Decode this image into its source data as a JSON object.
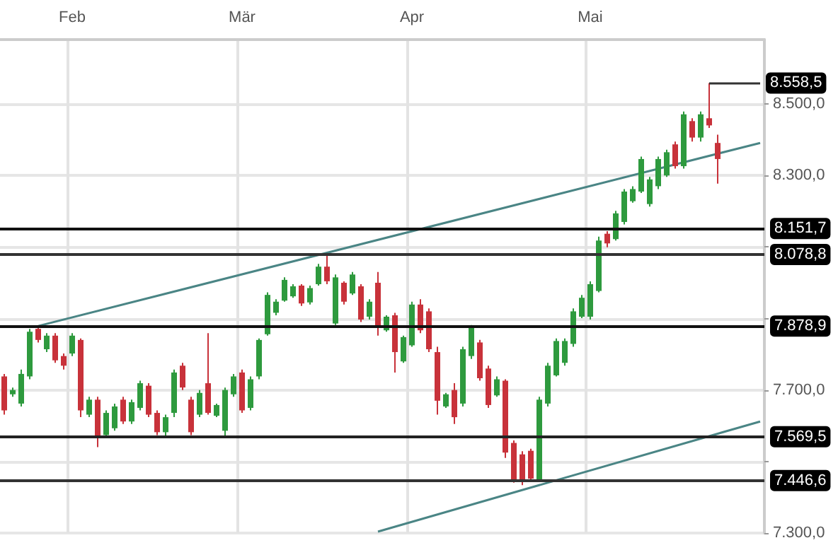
{
  "chart_data": {
    "type": "candlestick",
    "categories": [
      null,
      null,
      null,
      null,
      null,
      null,
      null,
      null,
      "Feb",
      null,
      null,
      null,
      null,
      null,
      null,
      null,
      null,
      null,
      null,
      null,
      null,
      null,
      null,
      null,
      null,
      null,
      null,
      null,
      "Mär",
      null,
      null,
      null,
      null,
      null,
      null,
      null,
      null,
      null,
      null,
      null,
      null,
      null,
      null,
      null,
      null,
      null,
      null,
      null,
      "Apr",
      null,
      null,
      null,
      null,
      null,
      null,
      null,
      null,
      null,
      null,
      null,
      null,
      null,
      null,
      null,
      null,
      null,
      null,
      null,
      null,
      "Mai",
      null,
      null,
      null,
      null,
      null,
      null,
      null,
      null,
      null,
      null,
      null,
      null,
      null,
      null,
      null,
      null,
      null,
      null,
      null,
      null
    ],
    "ohlc": [
      [
        7738,
        7745,
        7631,
        7643
      ],
      [
        7688,
        7707,
        7681,
        7700
      ],
      [
        7662,
        7757,
        7654,
        7745
      ],
      [
        7738,
        7871,
        7730,
        7863
      ],
      [
        7871,
        7878.9,
        7833,
        7840
      ],
      [
        7814,
        7859,
        7806,
        7852
      ],
      [
        7852,
        7859,
        7776,
        7783
      ],
      [
        7795,
        7802,
        7757,
        7768
      ],
      [
        7802,
        7859,
        7795,
        7852
      ],
      [
        7840,
        7844,
        7624,
        7643
      ],
      [
        7631,
        7681,
        7624,
        7673
      ],
      [
        7673,
        7681,
        7540,
        7567
      ],
      [
        7574,
        7643,
        7567,
        7636
      ],
      [
        7593,
        7662,
        7586,
        7654
      ],
      [
        7673,
        7681,
        7605,
        7612
      ],
      [
        7612,
        7673,
        7605,
        7666
      ],
      [
        7650,
        7726,
        7643,
        7719
      ],
      [
        7712,
        7719,
        7624,
        7631
      ],
      [
        7636,
        7643,
        7574,
        7582
      ],
      [
        7582,
        7631,
        7569.5,
        7624
      ],
      [
        7636,
        7757,
        7624,
        7749
      ],
      [
        7768,
        7776,
        7700,
        7707
      ],
      [
        7673,
        7681,
        7574,
        7582
      ],
      [
        7631,
        7700,
        7624,
        7692
      ],
      [
        7719,
        7859,
        7631,
        7636
      ],
      [
        7628,
        7662,
        7624,
        7658
      ],
      [
        7586,
        7707,
        7569.5,
        7700
      ],
      [
        7688,
        7745,
        7681,
        7738
      ],
      [
        7749,
        7757,
        7636,
        7643
      ],
      [
        7650,
        7738,
        7643,
        7730
      ],
      [
        7738,
        7844,
        7730,
        7840
      ],
      [
        7856,
        7973,
        7852,
        7966
      ],
      [
        7916,
        7954,
        7909,
        7947
      ],
      [
        7950,
        8015,
        7947,
        8008
      ],
      [
        7962,
        7996,
        7958,
        7990
      ],
      [
        7992,
        7996,
        7935,
        7942
      ],
      [
        7945,
        7992,
        7939,
        7985
      ],
      [
        7996,
        8053,
        7992,
        8045
      ],
      [
        8045,
        8078.8,
        7996,
        8004
      ],
      [
        7886,
        8023,
        7882,
        8015
      ],
      [
        8000,
        8004,
        7939,
        7947
      ],
      [
        7970,
        8030,
        7966,
        8023
      ],
      [
        7990,
        7996,
        7890,
        7897
      ],
      [
        7905,
        7954,
        7897,
        7947
      ],
      [
        8000,
        8030,
        7852,
        7878
      ],
      [
        7867,
        7909,
        7863,
        7905
      ],
      [
        7909,
        7916,
        7749,
        7806
      ],
      [
        7780,
        7852,
        7776,
        7848
      ],
      [
        7825,
        7947,
        7821,
        7939
      ],
      [
        7939,
        7954,
        7859,
        7867
      ],
      [
        7920,
        7928,
        7806,
        7814
      ],
      [
        7806,
        7821,
        7631,
        7670
      ],
      [
        7654,
        7692,
        7650,
        7688
      ],
      [
        7700,
        7719,
        7605,
        7624
      ],
      [
        7662,
        7821,
        7654,
        7814
      ],
      [
        7795,
        7882,
        7787,
        7875
      ],
      [
        7833,
        7840,
        7726,
        7733
      ],
      [
        7760,
        7768,
        7650,
        7658
      ],
      [
        7685,
        7738,
        7681,
        7730
      ],
      [
        7726,
        7730,
        7510,
        7525
      ],
      [
        7552,
        7559,
        7441,
        7450
      ],
      [
        7520,
        7529,
        7434,
        7446.6
      ],
      [
        7530,
        7536,
        7445,
        7452
      ],
      [
        7450,
        7681,
        7445,
        7673
      ],
      [
        7662,
        7776,
        7654,
        7768
      ],
      [
        7741,
        7844,
        7738,
        7837
      ],
      [
        7776,
        7844,
        7768,
        7837
      ],
      [
        7829,
        7928,
        7821,
        7920
      ],
      [
        7905,
        7966,
        7901,
        7958
      ],
      [
        7905,
        8004,
        7897,
        7996
      ],
      [
        7977,
        8129,
        7973,
        8118
      ],
      [
        8137,
        8144,
        8099,
        8110
      ],
      [
        8122,
        8201,
        8118,
        8194
      ],
      [
        8170,
        8262,
        8163,
        8255
      ],
      [
        8228,
        8270,
        8224,
        8262
      ],
      [
        8255,
        8353,
        8251,
        8346
      ],
      [
        8220,
        8296,
        8213,
        8289
      ],
      [
        8270,
        8353,
        8262,
        8346
      ],
      [
        8300,
        8372,
        8296,
        8365
      ],
      [
        8387,
        8395,
        8319,
        8326
      ],
      [
        8326,
        8479,
        8319,
        8471
      ],
      [
        8452,
        8460,
        8395,
        8406
      ],
      [
        8406,
        8479,
        8395,
        8471
      ],
      [
        8460,
        8558.5,
        8433,
        8440
      ],
      [
        8391,
        8414,
        8277,
        8346
      ],
      null,
      null,
      null,
      null,
      null
    ],
    "colors": [
      "#c8323a",
      "#2e9a3e",
      "#2e9a3e",
      "#2e9a3e",
      "#c8323a",
      "#2e9a3e",
      "#c8323a",
      "#c8323a",
      "#2e9a3e",
      "#c8323a",
      "#2e9a3e",
      "#c8323a",
      "#2e9a3e",
      "#2e9a3e",
      "#c8323a",
      "#2e9a3e",
      "#2e9a3e",
      "#c8323a",
      "#c8323a",
      "#2e9a3e",
      "#2e9a3e",
      "#c8323a",
      "#c8323a",
      "#2e9a3e",
      "#c8323a",
      "#2e9a3e",
      "#2e9a3e",
      "#2e9a3e",
      "#c8323a",
      "#2e9a3e",
      "#2e9a3e",
      "#2e9a3e",
      "#2e9a3e",
      "#2e9a3e",
      "#2e9a3e",
      "#c8323a",
      "#2e9a3e",
      "#2e9a3e",
      "#c8323a",
      "#2e9a3e",
      "#c8323a",
      "#2e9a3e",
      "#c8323a",
      "#2e9a3e",
      "#c8323a",
      "#2e9a3e",
      "#c8323a",
      "#2e9a3e",
      "#2e9a3e",
      "#c8323a",
      "#c8323a",
      "#c8323a",
      "#2e9a3e",
      "#c8323a",
      "#2e9a3e",
      "#2e9a3e",
      "#c8323a",
      "#c8323a",
      "#2e9a3e",
      "#c8323a",
      "#c8323a",
      "#c8323a",
      "#c8323a",
      "#2e9a3e",
      "#2e9a3e",
      "#2e9a3e",
      "#2e9a3e",
      "#2e9a3e",
      "#2e9a3e",
      "#2e9a3e",
      "#2e9a3e",
      "#c8323a",
      "#2e9a3e",
      "#2e9a3e",
      "#2e9a3e",
      "#2e9a3e",
      "#2e9a3e",
      "#2e9a3e",
      "#2e9a3e",
      "#c8323a",
      "#2e9a3e",
      "#c8323a",
      "#2e9a3e",
      "#c8323a",
      "#c8323a",
      null,
      null,
      null,
      null,
      null
    ],
    "series": [
      {
        "type": "line",
        "color": "#4a8585",
        "values": [
          null,
          null,
          null,
          null,
          7879,
          null,
          null,
          null,
          null,
          null,
          null,
          null,
          null,
          null,
          null,
          null,
          null,
          null,
          null,
          null,
          null,
          null,
          null,
          null,
          null,
          null,
          null,
          null,
          null,
          null,
          null,
          null,
          null,
          null,
          null,
          null,
          null,
          null,
          null,
          null,
          null,
          null,
          null,
          null,
          null,
          null,
          null,
          null,
          null,
          null,
          null,
          null,
          null,
          null,
          null,
          null,
          null,
          null,
          null,
          null,
          null,
          null,
          null,
          null,
          null,
          null,
          null,
          null,
          null,
          null,
          null,
          null,
          null,
          null,
          null,
          null,
          null,
          null,
          null,
          null,
          null,
          null,
          null,
          null,
          null,
          null,
          null,
          null,
          null,
          8391
        ]
      },
      {
        "type": "line",
        "color": "#4a8585",
        "values": [
          null,
          null,
          null,
          null,
          null,
          null,
          null,
          null,
          null,
          null,
          null,
          null,
          null,
          null,
          null,
          null,
          null,
          null,
          null,
          null,
          null,
          null,
          null,
          null,
          null,
          null,
          null,
          null,
          null,
          null,
          null,
          null,
          null,
          null,
          null,
          null,
          null,
          null,
          null,
          null,
          null,
          null,
          null,
          null,
          7304,
          null,
          null,
          null,
          null,
          null,
          null,
          null,
          null,
          null,
          null,
          null,
          null,
          null,
          null,
          null,
          null,
          null,
          null,
          null,
          null,
          null,
          null,
          null,
          null,
          null,
          null,
          null,
          null,
          null,
          null,
          null,
          null,
          null,
          null,
          null,
          null,
          null,
          null,
          null,
          null,
          null,
          null,
          null,
          null,
          7612
        ]
      }
    ],
    "ylim": [
      7300,
      8680
    ],
    "yticks": [
      {
        "value": 7300,
        "label": "7.300,0"
      },
      {
        "value": 7500,
        "label": null
      },
      {
        "value": 7700,
        "label": "7.700,0"
      },
      {
        "value": 7900,
        "label": null
      },
      {
        "value": 8100,
        "label": null
      },
      {
        "value": 8300,
        "label": "8.300,0"
      },
      {
        "value": 8500,
        "label": "8.500,0"
      }
    ],
    "ref_lines": [
      {
        "axis": "y",
        "value": 8151.7,
        "label": "8.151,7",
        "color": "#111111"
      },
      {
        "axis": "y",
        "value": 8078.8,
        "label": "8.078,8",
        "color": "#333333"
      },
      {
        "axis": "y",
        "value": 7878.9,
        "label": "7.878,9",
        "color": "#111111"
      },
      {
        "axis": "y",
        "value": 7569.5,
        "label": "7.569,5",
        "color": "#222222"
      },
      {
        "axis": "y",
        "value": 7446.6,
        "label": "7.446,6",
        "color": "#333333"
      }
    ],
    "annotations": [
      {
        "text": "8.558,5",
        "y": 8558.5
      }
    ],
    "grid": true
  }
}
